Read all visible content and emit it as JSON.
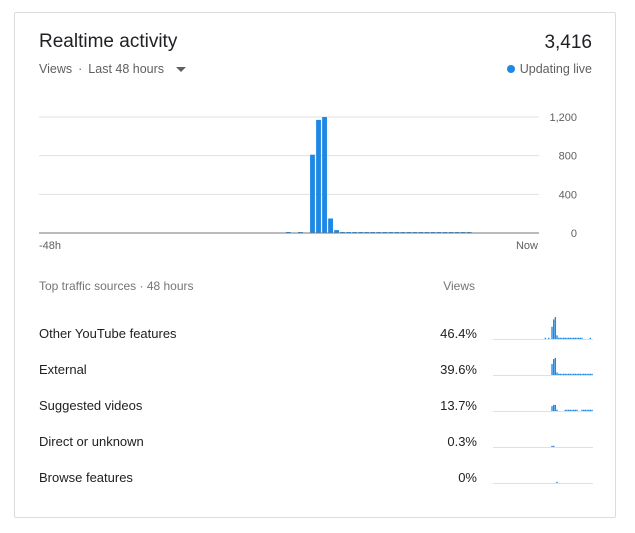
{
  "card": {
    "title": "Realtime activity",
    "total_views": "3,416",
    "subtitle_metric": "Views",
    "subtitle_separator": "·",
    "subtitle_range": "Last 48 hours",
    "live_label": "Updating live"
  },
  "colors": {
    "accent": "#1e88e5",
    "grid": "#e0e0e0",
    "baseline": "#757575"
  },
  "chart_data": {
    "type": "bar",
    "ylim": [
      0,
      1200
    ],
    "y_ticks": [
      "1,200",
      "800",
      "400",
      "0"
    ],
    "x_label_start": "-48h",
    "x_label_end": "Now",
    "values": [
      0,
      0,
      0,
      0,
      0,
      0,
      0,
      0,
      0,
      0,
      0,
      0,
      0,
      0,
      0,
      0,
      0,
      0,
      0,
      0,
      0,
      0,
      0,
      0,
      0,
      0,
      0,
      0,
      0,
      0,
      0,
      0,
      0,
      0,
      0,
      0,
      0,
      0,
      0,
      0,
      0,
      10,
      0,
      5,
      0,
      810,
      1170,
      1200,
      150,
      30,
      10,
      10,
      10,
      10,
      10,
      10,
      10,
      10,
      10,
      10,
      10,
      10,
      10,
      10,
      10,
      10,
      10,
      10,
      10,
      10,
      10,
      10,
      0,
      0,
      0,
      0,
      0,
      0,
      0,
      0,
      0,
      0,
      0
    ]
  },
  "traffic": {
    "header": "Top traffic sources · 48 hours",
    "views_header": "Views",
    "sources": [
      {
        "label": "Other YouTube features",
        "pct": "46.4%",
        "spark": [
          0,
          0,
          0,
          0,
          0,
          0,
          0,
          0,
          0,
          0,
          0,
          0,
          0,
          0,
          0,
          0,
          0,
          0,
          0,
          0,
          0,
          0,
          0,
          0,
          0,
          0,
          0,
          0,
          0,
          0,
          0,
          1,
          0,
          1,
          0,
          10,
          16,
          18,
          3,
          1,
          1,
          1,
          1,
          1,
          1,
          1,
          1,
          1,
          1,
          1,
          1,
          1,
          1,
          1,
          0,
          0,
          0,
          0,
          1,
          0
        ]
      },
      {
        "label": "External",
        "pct": "39.6%",
        "spark": [
          0,
          0,
          0,
          0,
          0,
          0,
          0,
          0,
          0,
          0,
          0,
          0,
          0,
          0,
          0,
          0,
          0,
          0,
          0,
          0,
          0,
          0,
          0,
          0,
          0,
          0,
          0,
          0,
          0,
          0,
          0,
          0,
          0,
          0,
          0,
          9,
          13,
          14,
          2,
          1,
          1,
          1,
          1,
          1,
          1,
          1,
          1,
          1,
          1,
          1,
          1,
          1,
          1,
          1,
          1,
          1,
          1,
          1,
          1,
          1
        ]
      },
      {
        "label": "Suggested videos",
        "pct": "13.7%",
        "spark": [
          0,
          0,
          0,
          0,
          0,
          0,
          0,
          0,
          0,
          0,
          0,
          0,
          0,
          0,
          0,
          0,
          0,
          0,
          0,
          0,
          0,
          0,
          0,
          0,
          0,
          0,
          0,
          0,
          0,
          0,
          0,
          0,
          0,
          0,
          0,
          4,
          5,
          5,
          1,
          0,
          0,
          0,
          0,
          1,
          1,
          1,
          1,
          1,
          1,
          1,
          1,
          0,
          0,
          1,
          1,
          1,
          1,
          1,
          1,
          1
        ]
      },
      {
        "label": "Direct or unknown",
        "pct": "0.3%",
        "spark": [
          0,
          0,
          0,
          0,
          0,
          0,
          0,
          0,
          0,
          0,
          0,
          0,
          0,
          0,
          0,
          0,
          0,
          0,
          0,
          0,
          0,
          0,
          0,
          0,
          0,
          0,
          0,
          0,
          0,
          0,
          0,
          0,
          0,
          0,
          0,
          1,
          1,
          0,
          0,
          0,
          0,
          0,
          0,
          0,
          0,
          0,
          0,
          0,
          0,
          0,
          0,
          0,
          0,
          0,
          0,
          0,
          0,
          0,
          0,
          0
        ]
      },
      {
        "label": "Browse features",
        "pct": "0%",
        "spark": [
          0,
          0,
          0,
          0,
          0,
          0,
          0,
          0,
          0,
          0,
          0,
          0,
          0,
          0,
          0,
          0,
          0,
          0,
          0,
          0,
          0,
          0,
          0,
          0,
          0,
          0,
          0,
          0,
          0,
          0,
          0,
          0,
          0,
          0,
          0,
          0,
          0,
          0,
          1,
          0,
          0,
          0,
          0,
          0,
          0,
          0,
          0,
          0,
          0,
          0,
          0,
          0,
          0,
          0,
          0,
          0,
          0,
          0,
          0,
          0
        ]
      }
    ]
  }
}
